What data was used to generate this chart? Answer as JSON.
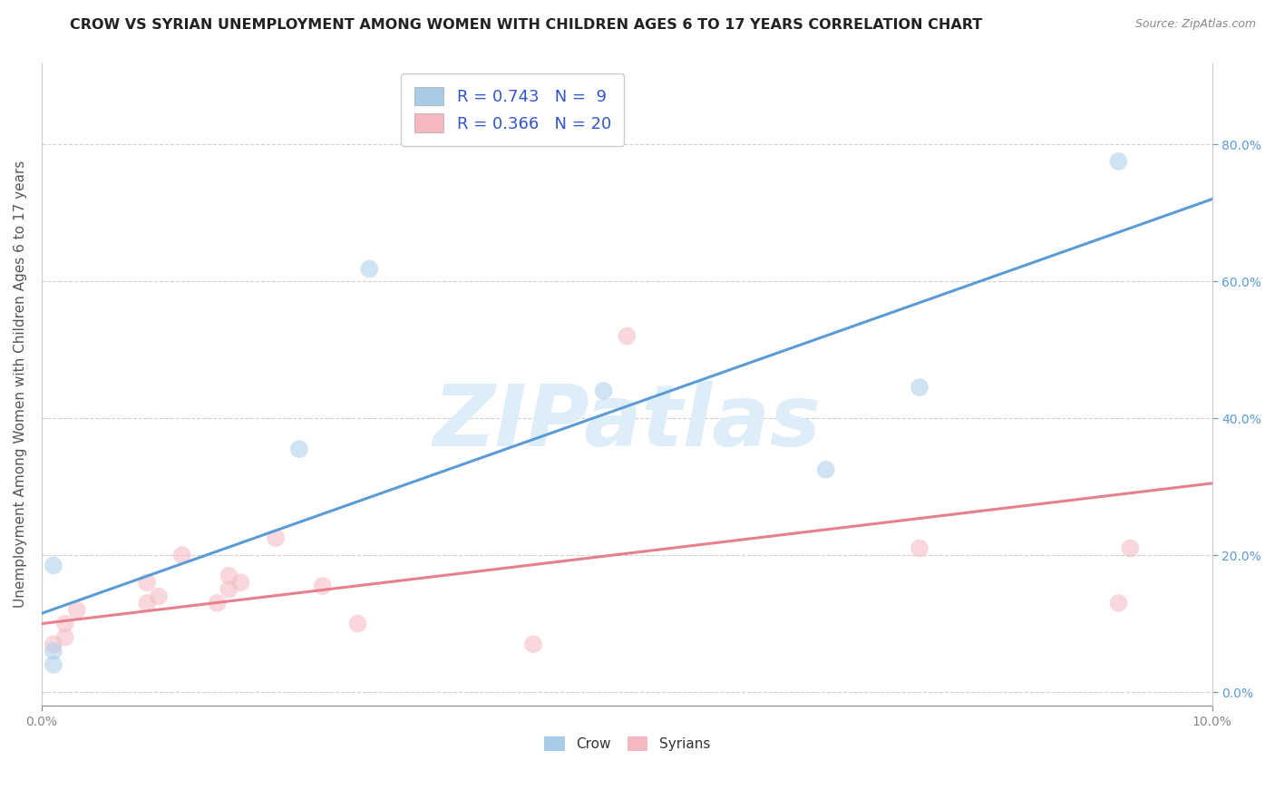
{
  "title": "CROW VS SYRIAN UNEMPLOYMENT AMONG WOMEN WITH CHILDREN AGES 6 TO 17 YEARS CORRELATION CHART",
  "source": "Source: ZipAtlas.com",
  "ylabel": "Unemployment Among Women with Children Ages 6 to 17 years",
  "xlim": [
    0.0,
    0.1
  ],
  "ylim": [
    -0.02,
    0.92
  ],
  "xticks": [
    0.0,
    0.1
  ],
  "yticks": [
    0.0,
    0.2,
    0.4,
    0.6,
    0.8
  ],
  "crow_color": "#a8cce8",
  "syrians_color": "#f4b8c1",
  "crow_line_color": "#5b9bd5",
  "syrians_line_color": "#e87f8c",
  "crow_R": 0.743,
  "crow_N": 9,
  "syrians_R": 0.366,
  "syrians_N": 20,
  "crow_scatter_x": [
    0.001,
    0.001,
    0.001,
    0.022,
    0.028,
    0.048,
    0.067,
    0.075,
    0.092
  ],
  "crow_scatter_y": [
    0.185,
    0.06,
    0.04,
    0.355,
    0.618,
    0.44,
    0.325,
    0.445,
    0.775
  ],
  "syrians_scatter_x": [
    0.001,
    0.002,
    0.002,
    0.003,
    0.009,
    0.009,
    0.01,
    0.012,
    0.015,
    0.016,
    0.016,
    0.017,
    0.02,
    0.024,
    0.027,
    0.042,
    0.05,
    0.075,
    0.092,
    0.093
  ],
  "syrians_scatter_y": [
    0.07,
    0.08,
    0.1,
    0.12,
    0.13,
    0.16,
    0.14,
    0.2,
    0.13,
    0.15,
    0.17,
    0.16,
    0.225,
    0.155,
    0.1,
    0.07,
    0.52,
    0.21,
    0.13,
    0.21
  ],
  "crow_line_x": [
    0.0,
    0.1
  ],
  "crow_line_y": [
    0.115,
    0.72
  ],
  "syrians_line_x": [
    0.0,
    0.1
  ],
  "syrians_line_y": [
    0.1,
    0.305
  ],
  "background_color": "#ffffff",
  "watermark_text": "ZIPatlas",
  "watermark_color": "#ddeef8",
  "grid_color": "#d0d0d0",
  "legend_facecolor": "#ffffff",
  "right_axis_color": "#5b9bd5",
  "scatter_size": 200,
  "scatter_alpha": 0.55
}
